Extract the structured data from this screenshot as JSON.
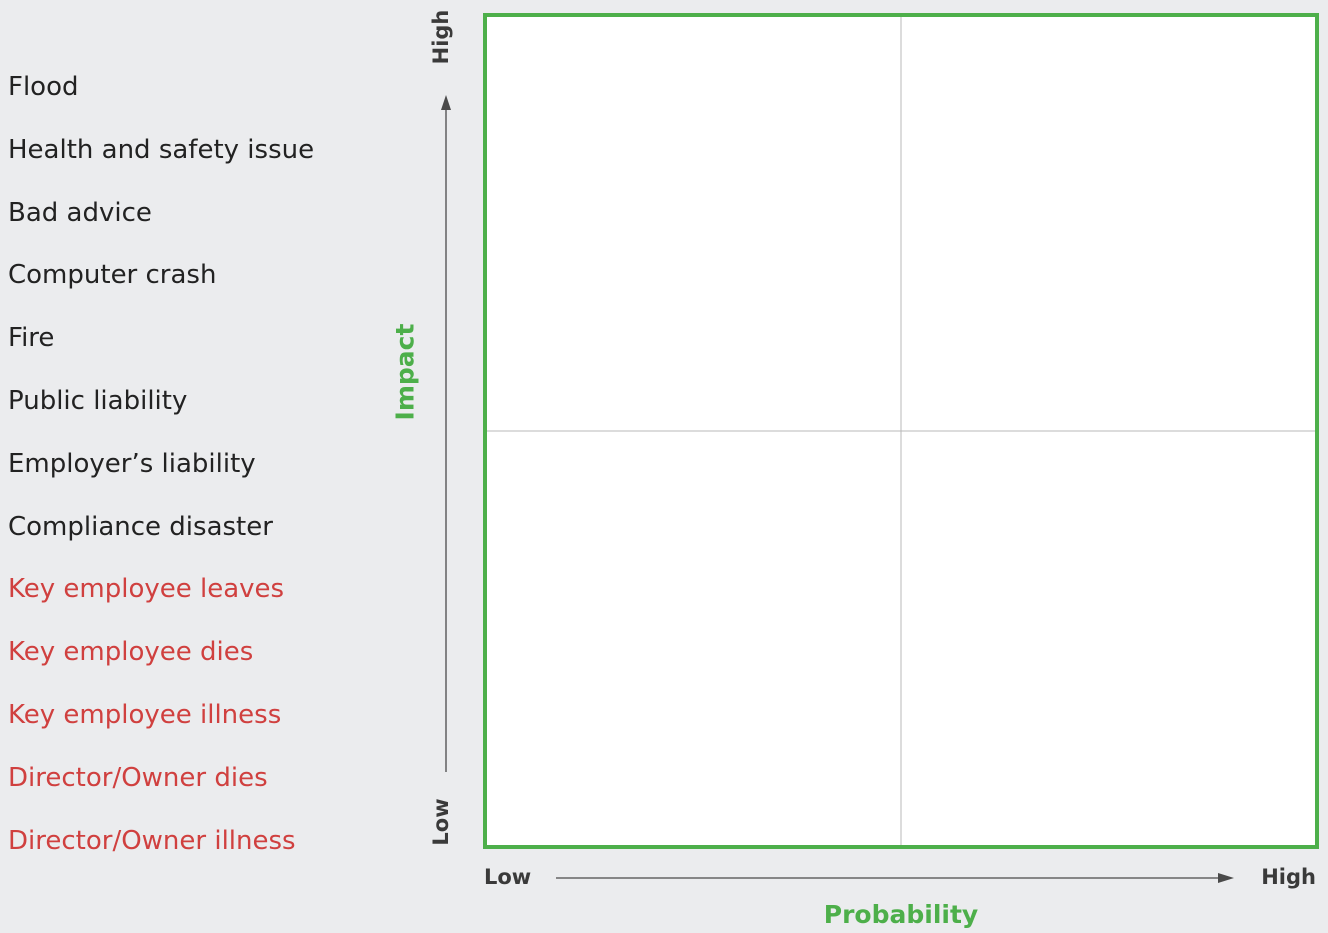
{
  "risks": [
    {
      "label": "Flood",
      "color": "#222222"
    },
    {
      "label": "Health and safety issue",
      "color": "#222222"
    },
    {
      "label": "Bad advice",
      "color": "#222222"
    },
    {
      "label": "Computer crash",
      "color": "#222222"
    },
    {
      "label": "Fire",
      "color": "#222222"
    },
    {
      "label": "Public liability",
      "color": "#222222"
    },
    {
      "label": "Employer’s liability",
      "color": "#222222"
    },
    {
      "label": "Compliance disaster",
      "color": "#222222"
    },
    {
      "label": "Key employee leaves",
      "color": "#d0403f"
    },
    {
      "label": "Key employee dies",
      "color": "#d0403f"
    },
    {
      "label": "Key employee illness",
      "color": "#d0403f"
    },
    {
      "label": "Director/Owner dies",
      "color": "#d0403f"
    },
    {
      "label": "Director/Owner illness",
      "color": "#d0403f"
    }
  ],
  "y_axis": {
    "title": "Impact",
    "low": "Low",
    "high": "High"
  },
  "x_axis": {
    "title": "Probability",
    "low": "Low",
    "high": "High"
  },
  "colors": {
    "matrix_border": "#4daf4a",
    "axis_title": "#4daf4a",
    "risk_default": "#222222",
    "risk_highlight": "#d0403f",
    "background": "#ebecee"
  }
}
